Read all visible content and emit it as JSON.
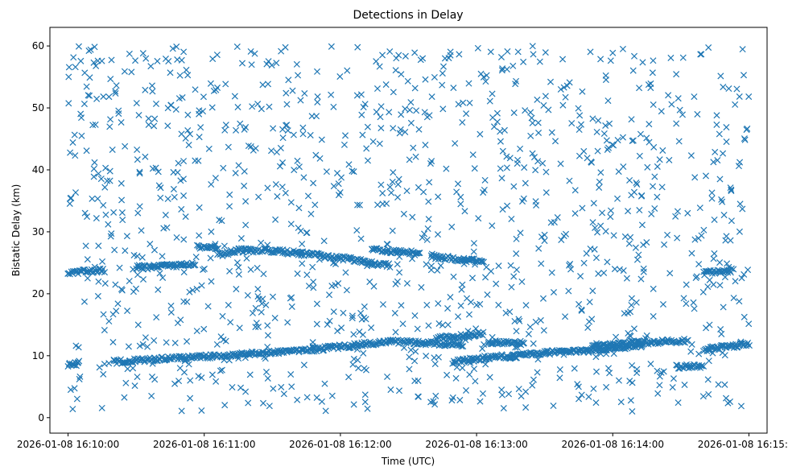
{
  "chart_data": {
    "type": "scatter",
    "title": "Detections in Delay",
    "xlabel": "Time (UTC)",
    "ylabel": "Bistatic Delay (km)",
    "xlim": [
      "2026-01-08 16:09:52",
      "2026-01-08 16:15:08"
    ],
    "ylim": [
      -2.5,
      63
    ],
    "x_ticks": [
      "2026-01-08 16:10:00",
      "2026-01-08 16:11:00",
      "2026-01-08 16:12:00",
      "2026-01-08 16:13:00",
      "2026-01-08 16:14:00",
      "2026-01-08 16:15:00"
    ],
    "y_ticks": [
      0,
      10,
      20,
      30,
      40,
      50,
      60
    ],
    "marker": "x",
    "grid": false,
    "legend": "none",
    "colors": {
      "series": "#1f77b4",
      "axes": "#000000"
    },
    "clutter": {
      "time_range": [
        "2026-01-08 16:10:00",
        "2026-01-08 16:15:00"
      ],
      "delay_range_km": [
        1,
        60
      ],
      "approx_count": 1200
    },
    "tracks": [
      {
        "points": [
          [
            "2026-01-08 16:10:00",
            23.4
          ],
          [
            "2026-01-08 16:10:16",
            23.8
          ]
        ]
      },
      {
        "points": [
          [
            "2026-01-08 16:10:30",
            24.2
          ],
          [
            "2026-01-08 16:10:56",
            24.7
          ]
        ]
      },
      {
        "points": [
          [
            "2026-01-08 16:10:57",
            27.6
          ],
          [
            "2026-01-08 16:11:06",
            27.4
          ]
        ]
      },
      {
        "points": [
          [
            "2026-01-08 16:11:06",
            26.2
          ],
          [
            "2026-01-08 16:11:15",
            27.0
          ],
          [
            "2026-01-08 16:11:28",
            27.0
          ],
          [
            "2026-01-08 16:11:43",
            26.5
          ],
          [
            "2026-01-08 16:12:00",
            25.8
          ],
          [
            "2026-01-08 16:12:22",
            24.5
          ]
        ]
      },
      {
        "points": [
          [
            "2026-01-08 16:12:14",
            27.2
          ],
          [
            "2026-01-08 16:12:35",
            26.5
          ]
        ]
      },
      {
        "points": [
          [
            "2026-01-08 16:12:40",
            26.0
          ],
          [
            "2026-01-08 16:13:03",
            25.2
          ]
        ]
      },
      {
        "points": [
          [
            "2026-01-08 16:14:40",
            23.3
          ],
          [
            "2026-01-08 16:14:53",
            23.8
          ]
        ]
      },
      {
        "points": [
          [
            "2026-01-08 16:10:00",
            8.5
          ],
          [
            "2026-01-08 16:10:05",
            8.8
          ]
        ]
      },
      {
        "points": [
          [
            "2026-01-08 16:10:20",
            9.0
          ],
          [
            "2026-01-08 16:10:57",
            9.8
          ],
          [
            "2026-01-08 16:11:21",
            10.3
          ],
          [
            "2026-01-08 16:11:48",
            11.0
          ],
          [
            "2026-01-08 16:12:04",
            11.6
          ],
          [
            "2026-01-08 16:12:22",
            12.3
          ],
          [
            "2026-01-08 16:12:33",
            12.1
          ],
          [
            "2026-01-08 16:12:54",
            11.8
          ]
        ]
      },
      {
        "points": [
          [
            "2026-01-08 16:12:42",
            12.8
          ],
          [
            "2026-01-08 16:13:03",
            13.6
          ]
        ]
      },
      {
        "points": [
          [
            "2026-01-08 16:12:50",
            9.0
          ],
          [
            "2026-01-08 16:13:05",
            9.7
          ],
          [
            "2026-01-08 16:13:17",
            10.0
          ]
        ]
      },
      {
        "points": [
          [
            "2026-01-08 16:13:05",
            12.2
          ],
          [
            "2026-01-08 16:13:21",
            12.0
          ]
        ]
      },
      {
        "points": [
          [
            "2026-01-08 16:13:14",
            9.8
          ],
          [
            "2026-01-08 16:13:31",
            10.5
          ],
          [
            "2026-01-08 16:13:51",
            10.9
          ],
          [
            "2026-01-08 16:14:13",
            11.6
          ]
        ]
      },
      {
        "points": [
          [
            "2026-01-08 16:13:51",
            11.5
          ],
          [
            "2026-01-08 16:14:12",
            12.1
          ],
          [
            "2026-01-08 16:14:33",
            12.4
          ]
        ]
      },
      {
        "points": [
          [
            "2026-01-08 16:14:28",
            8.2
          ],
          [
            "2026-01-08 16:14:40",
            8.4
          ]
        ]
      },
      {
        "points": [
          [
            "2026-01-08 16:14:40",
            11.0
          ],
          [
            "2026-01-08 16:14:56",
            11.7
          ],
          [
            "2026-01-08 16:15:00",
            12.0
          ]
        ]
      }
    ]
  }
}
